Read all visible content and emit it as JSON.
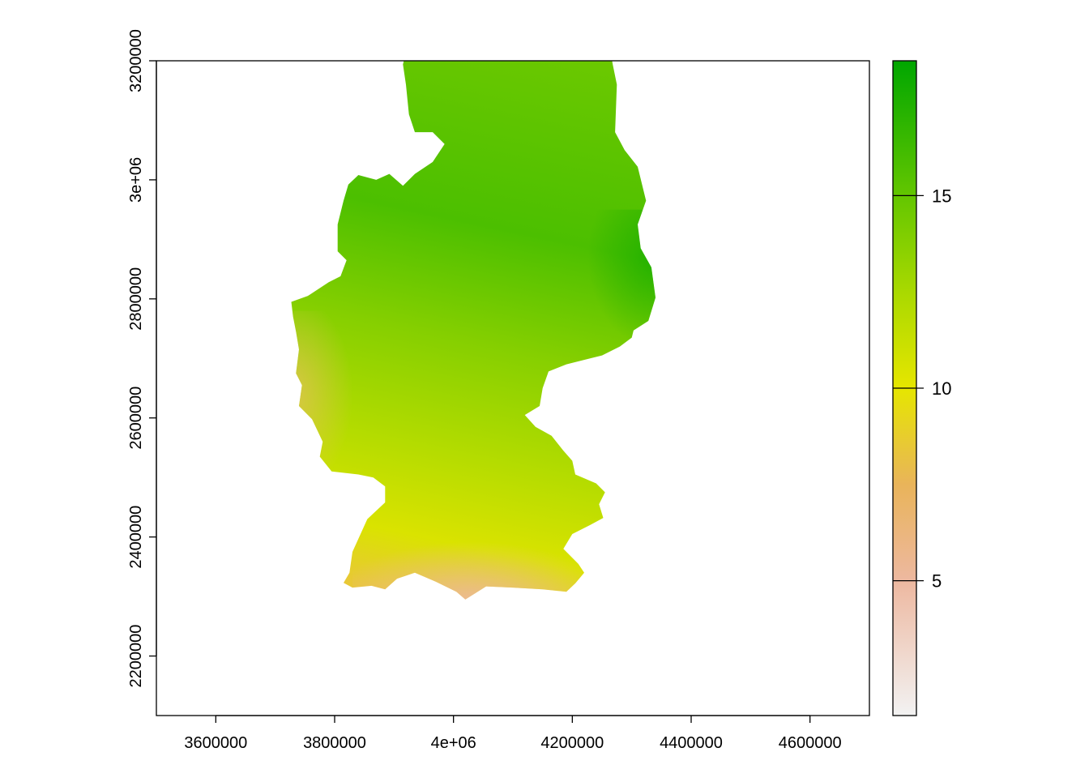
{
  "chart_data": {
    "type": "heatmap",
    "title": "",
    "xlabel": "",
    "ylabel": "",
    "xlim": [
      3500000,
      4700000
    ],
    "ylim": [
      2100000,
      3200000
    ],
    "x_ticks": [
      {
        "value": 3600000,
        "label": "3600000"
      },
      {
        "value": 3800000,
        "label": "3800000"
      },
      {
        "value": 4000000,
        "label": "4e+06"
      },
      {
        "value": 4200000,
        "label": "4200000"
      },
      {
        "value": 4400000,
        "label": "4400000"
      },
      {
        "value": 4600000,
        "label": "4600000"
      }
    ],
    "y_ticks": [
      {
        "value": 2200000,
        "label": "2200000"
      },
      {
        "value": 2400000,
        "label": "2400000"
      },
      {
        "value": 2600000,
        "label": "2600000"
      },
      {
        "value": 2800000,
        "label": "2800000"
      },
      {
        "value": 3000000,
        "label": "3e+06"
      },
      {
        "value": 3200000,
        "label": "3200000"
      }
    ],
    "legend": {
      "placement": "right",
      "range": [
        1.5,
        18.5
      ],
      "ticks": [
        {
          "value": 5,
          "label": "5"
        },
        {
          "value": 10,
          "label": "10"
        },
        {
          "value": 15,
          "label": "15"
        }
      ],
      "color_stops": [
        {
          "value": 1.5,
          "color": "#F2F2F2"
        },
        {
          "value": 5,
          "color": "#EDB8A0"
        },
        {
          "value": 7.5,
          "color": "#E9B45A"
        },
        {
          "value": 10,
          "color": "#E6E600"
        },
        {
          "value": 12.5,
          "color": "#A9D900"
        },
        {
          "value": 15,
          "color": "#63C600"
        },
        {
          "value": 18.5,
          "color": "#00A600"
        }
      ]
    },
    "region_outline": [
      [
        3907000,
        3325000
      ],
      [
        3905000,
        3314000
      ],
      [
        3935000,
        3312000
      ],
      [
        3975000,
        3297000
      ],
      [
        3975000,
        3255000
      ],
      [
        4000000,
        3244000
      ],
      [
        4030000,
        3255000
      ],
      [
        4065000,
        3274000
      ],
      [
        4115000,
        3258000
      ],
      [
        4160000,
        3277000
      ],
      [
        4208000,
        3293000
      ],
      [
        4225000,
        3254000
      ],
      [
        4263000,
        3222000
      ],
      [
        4268000,
        3194000
      ],
      [
        4275000,
        3160000
      ],
      [
        4272000,
        3080000
      ],
      [
        4288000,
        3050000
      ],
      [
        4310000,
        3022000
      ],
      [
        4324000,
        2965000
      ],
      [
        4310000,
        2925000
      ],
      [
        4315000,
        2885000
      ],
      [
        4333000,
        2853000
      ],
      [
        4340000,
        2802000
      ],
      [
        4328000,
        2763000
      ],
      [
        4303000,
        2747000
      ],
      [
        4300000,
        2735000
      ],
      [
        4280000,
        2720000
      ],
      [
        4250000,
        2705000
      ],
      [
        4230000,
        2700000
      ],
      [
        4190000,
        2690000
      ],
      [
        4160000,
        2678000
      ],
      [
        4150000,
        2650000
      ],
      [
        4145000,
        2620000
      ],
      [
        4120000,
        2605000
      ],
      [
        4138000,
        2585000
      ],
      [
        4165000,
        2570000
      ],
      [
        4185000,
        2545000
      ],
      [
        4200000,
        2528000
      ],
      [
        4205000,
        2505000
      ],
      [
        4240000,
        2490000
      ],
      [
        4255000,
        2475000
      ],
      [
        4245000,
        2455000
      ],
      [
        4252000,
        2432000
      ],
      [
        4230000,
        2420000
      ],
      [
        4200000,
        2405000
      ],
      [
        4185000,
        2380000
      ],
      [
        4210000,
        2355000
      ],
      [
        4220000,
        2340000
      ],
      [
        4205000,
        2322000
      ],
      [
        4190000,
        2308000
      ],
      [
        4150000,
        2312000
      ],
      [
        4100000,
        2315000
      ],
      [
        4055000,
        2317000
      ],
      [
        4020000,
        2295000
      ],
      [
        4005000,
        2308000
      ],
      [
        3970000,
        2325000
      ],
      [
        3935000,
        2340000
      ],
      [
        3905000,
        2330000
      ],
      [
        3885000,
        2312000
      ],
      [
        3862000,
        2318000
      ],
      [
        3830000,
        2315000
      ],
      [
        3815000,
        2323000
      ],
      [
        3825000,
        2340000
      ],
      [
        3830000,
        2375000
      ],
      [
        3855000,
        2430000
      ],
      [
        3885000,
        2458000
      ],
      [
        3885000,
        2485000
      ],
      [
        3865000,
        2500000
      ],
      [
        3840000,
        2505000
      ],
      [
        3795000,
        2510000
      ],
      [
        3775000,
        2535000
      ],
      [
        3780000,
        2560000
      ],
      [
        3762000,
        2598000
      ],
      [
        3740000,
        2620000
      ],
      [
        3745000,
        2655000
      ],
      [
        3735000,
        2675000
      ],
      [
        3740000,
        2715000
      ],
      [
        3735000,
        2745000
      ],
      [
        3730000,
        2770000
      ],
      [
        3727000,
        2795000
      ],
      [
        3755000,
        2805000
      ],
      [
        3790000,
        2828000
      ],
      [
        3810000,
        2838000
      ],
      [
        3820000,
        2865000
      ],
      [
        3805000,
        2880000
      ],
      [
        3805000,
        2925000
      ],
      [
        3815000,
        2965000
      ],
      [
        3823000,
        2992000
      ],
      [
        3840000,
        3008000
      ],
      [
        3870000,
        3000000
      ],
      [
        3892000,
        3010000
      ],
      [
        3915000,
        2990000
      ],
      [
        3935000,
        3010000
      ],
      [
        3965000,
        3030000
      ],
      [
        3985000,
        3060000
      ],
      [
        3965000,
        3080000
      ],
      [
        3935000,
        3080000
      ],
      [
        3925000,
        3110000
      ],
      [
        3920000,
        3160000
      ],
      [
        3915000,
        3194000
      ],
      [
        3925000,
        3234000
      ],
      [
        3915000,
        3260000
      ],
      [
        3892000,
        3282000
      ],
      [
        3890000,
        3303000
      ],
      [
        3907000,
        3325000
      ]
    ]
  }
}
